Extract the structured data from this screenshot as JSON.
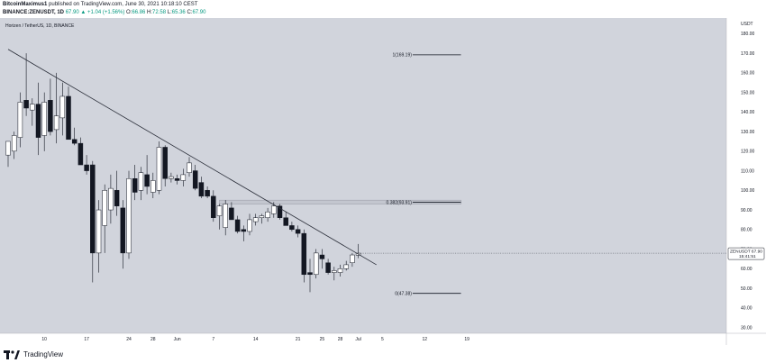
{
  "header": {
    "author": "BitcoinMaximus1",
    "published_text": "published on TradingView.com, June 30, 2021 10:18:10 CEST",
    "symbol_line": "BINANCE:ZENUSDT, 1D",
    "last_value": "67.90",
    "change": "▲ +1.04 (+1.56%)",
    "ohlc_o_label": "O:",
    "ohlc_o": "66.86",
    "ohlc_h_label": "H:",
    "ohlc_h": "72.58",
    "ohlc_l_label": "L:",
    "ohlc_l": "65.36",
    "ohlc_c_label": "C:",
    "ohlc_c": "67.90"
  },
  "chart_title": "Horizen / TetherUS, 1D, BINANCE",
  "footer": {
    "brand": "TradingView"
  },
  "colors": {
    "background": "#d1d4dc",
    "axis_background": "#ffffff",
    "up_candle": "#ffffff",
    "down_candle": "#131722",
    "trendline": "#2a2e39",
    "fib_line": "#131722",
    "price_label_border": "#131722"
  },
  "chart_data": {
    "type": "candlestick",
    "currency_label": "USDT",
    "yticks": [
      30,
      40,
      50,
      60,
      70,
      80,
      90,
      100,
      110,
      120,
      130,
      140,
      150,
      160,
      170,
      180
    ],
    "ylim": [
      27,
      188
    ],
    "xticks": [
      {
        "label": "10",
        "day": 10
      },
      {
        "label": "17",
        "day": 17
      },
      {
        "label": "24",
        "day": 24
      },
      {
        "label": "28",
        "day": 28
      },
      {
        "label": "Jun",
        "day": 32
      },
      {
        "label": "7",
        "day": 38
      },
      {
        "label": "14",
        "day": 45
      },
      {
        "label": "21",
        "day": 52
      },
      {
        "label": "25",
        "day": 56
      },
      {
        "label": "28",
        "day": 59
      },
      {
        "label": "Jul",
        "day": 62
      },
      {
        "label": "5",
        "day": 66
      },
      {
        "label": "12",
        "day": 73
      },
      {
        "label": "19",
        "day": 80
      }
    ],
    "xlim": [
      4,
      81
    ],
    "candles": [
      {
        "day": 4,
        "o": 118,
        "h": 125,
        "l": 112,
        "c": 125
      },
      {
        "day": 5,
        "o": 120,
        "h": 130,
        "l": 116,
        "c": 128
      },
      {
        "day": 6,
        "o": 127,
        "h": 150,
        "l": 122,
        "c": 145
      },
      {
        "day": 7,
        "o": 146,
        "h": 170,
        "l": 138,
        "c": 142
      },
      {
        "day": 8,
        "o": 141,
        "h": 147,
        "l": 133,
        "c": 144
      },
      {
        "day": 9,
        "o": 144,
        "h": 155,
        "l": 118,
        "c": 127
      },
      {
        "day": 10,
        "o": 128,
        "h": 150,
        "l": 120,
        "c": 145
      },
      {
        "day": 11,
        "o": 146,
        "h": 157,
        "l": 128,
        "c": 130
      },
      {
        "day": 12,
        "o": 131,
        "h": 160,
        "l": 124,
        "c": 138
      },
      {
        "day": 13,
        "o": 137,
        "h": 155,
        "l": 128,
        "c": 148
      },
      {
        "day": 14,
        "o": 148,
        "h": 153,
        "l": 126,
        "c": 126
      },
      {
        "day": 15,
        "o": 126,
        "h": 132,
        "l": 123,
        "c": 124
      },
      {
        "day": 16,
        "o": 124,
        "h": 127,
        "l": 113,
        "c": 113
      },
      {
        "day": 17,
        "o": 113,
        "h": 118,
        "l": 108,
        "c": 110
      },
      {
        "day": 18,
        "o": 113,
        "h": 115,
        "l": 53,
        "c": 68
      },
      {
        "day": 19,
        "o": 68,
        "h": 95,
        "l": 58,
        "c": 90
      },
      {
        "day": 20,
        "o": 82,
        "h": 103,
        "l": 68,
        "c": 100
      },
      {
        "day": 21,
        "o": 90,
        "h": 108,
        "l": 83,
        "c": 101
      },
      {
        "day": 22,
        "o": 100,
        "h": 110,
        "l": 87,
        "c": 92
      },
      {
        "day": 23,
        "o": 91,
        "h": 95,
        "l": 60,
        "c": 68
      },
      {
        "day": 24,
        "o": 68,
        "h": 110,
        "l": 65,
        "c": 106
      },
      {
        "day": 25,
        "o": 106,
        "h": 113,
        "l": 95,
        "c": 99
      },
      {
        "day": 26,
        "o": 100,
        "h": 112,
        "l": 95,
        "c": 109
      },
      {
        "day": 27,
        "o": 108,
        "h": 118,
        "l": 98,
        "c": 102
      },
      {
        "day": 28,
        "o": 99,
        "h": 109,
        "l": 96,
        "c": 105
      },
      {
        "day": 29,
        "o": 100,
        "h": 125,
        "l": 98,
        "c": 122
      },
      {
        "day": 30,
        "o": 122,
        "h": 123,
        "l": 102,
        "c": 106
      },
      {
        "day": 31,
        "o": 106,
        "h": 109,
        "l": 104,
        "c": 107
      },
      {
        "day": 32,
        "o": 106,
        "h": 108,
        "l": 103,
        "c": 105
      },
      {
        "day": 33,
        "o": 105,
        "h": 111,
        "l": 102,
        "c": 108
      },
      {
        "day": 34,
        "o": 109,
        "h": 117,
        "l": 107,
        "c": 114
      },
      {
        "day": 35,
        "o": 110,
        "h": 113,
        "l": 100,
        "c": 101
      },
      {
        "day": 36,
        "o": 104,
        "h": 107,
        "l": 96,
        "c": 97
      },
      {
        "day": 37,
        "o": 100,
        "h": 102,
        "l": 96,
        "c": 97
      },
      {
        "day": 38,
        "o": 97,
        "h": 100,
        "l": 84,
        "c": 86
      },
      {
        "day": 39,
        "o": 87,
        "h": 93,
        "l": 80,
        "c": 92
      },
      {
        "day": 40,
        "o": 81,
        "h": 95,
        "l": 77,
        "c": 93
      },
      {
        "day": 41,
        "o": 91,
        "h": 94,
        "l": 85,
        "c": 85
      },
      {
        "day": 42,
        "o": 85,
        "h": 87,
        "l": 78,
        "c": 79
      },
      {
        "day": 43,
        "o": 80,
        "h": 82,
        "l": 74,
        "c": 79
      },
      {
        "day": 44,
        "o": 79,
        "h": 88,
        "l": 77,
        "c": 85
      },
      {
        "day": 45,
        "o": 84,
        "h": 88,
        "l": 82,
        "c": 86
      },
      {
        "day": 46,
        "o": 86,
        "h": 88,
        "l": 83,
        "c": 87
      },
      {
        "day": 47,
        "o": 86,
        "h": 91,
        "l": 84,
        "c": 89
      },
      {
        "day": 48,
        "o": 88,
        "h": 94,
        "l": 86,
        "c": 92
      },
      {
        "day": 49,
        "o": 92,
        "h": 93,
        "l": 85,
        "c": 86
      },
      {
        "day": 50,
        "o": 86,
        "h": 89,
        "l": 82,
        "c": 82
      },
      {
        "day": 51,
        "o": 82,
        "h": 84,
        "l": 79,
        "c": 80
      },
      {
        "day": 52,
        "o": 80,
        "h": 82,
        "l": 76,
        "c": 78
      },
      {
        "day": 53,
        "o": 78,
        "h": 80,
        "l": 53,
        "c": 57
      },
      {
        "day": 54,
        "o": 58,
        "h": 65,
        "l": 48,
        "c": 57
      },
      {
        "day": 55,
        "o": 57,
        "h": 70,
        "l": 55,
        "c": 68
      },
      {
        "day": 56,
        "o": 67,
        "h": 70,
        "l": 60,
        "c": 65
      },
      {
        "day": 57,
        "o": 63,
        "h": 65,
        "l": 57,
        "c": 58
      },
      {
        "day": 58,
        "o": 58,
        "h": 61,
        "l": 54,
        "c": 59
      },
      {
        "day": 59,
        "o": 58,
        "h": 62,
        "l": 56,
        "c": 60
      },
      {
        "day": 60,
        "o": 60,
        "h": 64,
        "l": 59,
        "c": 62
      },
      {
        "day": 61,
        "o": 63,
        "h": 68,
        "l": 61,
        "c": 67
      },
      {
        "day": 62,
        "o": 66.86,
        "h": 72.58,
        "l": 65.36,
        "c": 67.9
      }
    ],
    "trendline": {
      "from": {
        "day": 4,
        "price": 172
      },
      "to": {
        "day": 65,
        "price": 62
      }
    },
    "fib_box": {
      "from_day": 39,
      "to_day": 79,
      "price_top": 95,
      "price_bottom": 93
    },
    "fib_levels": [
      {
        "label": "1(169.19)",
        "price": 169.19,
        "from_day": 71,
        "to_day": 79
      },
      {
        "label": "0.382(93.91)",
        "price": 93.91,
        "from_day": 71,
        "to_day": 79
      },
      {
        "label": "0(47.38)",
        "price": 47.38,
        "from_day": 71,
        "to_day": 79
      }
    ],
    "price_tag": {
      "symbol": "ZENUSDT",
      "price": "67.90",
      "countdown": "15:41:51",
      "value": 67.9
    }
  }
}
